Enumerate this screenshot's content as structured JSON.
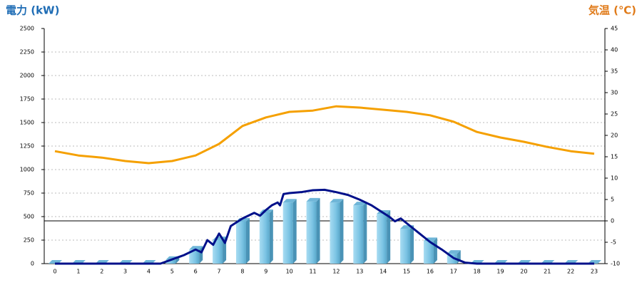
{
  "chart_data": {
    "type": "bar_line_combo",
    "y_title": "電力 (kW)",
    "y2_title": "気温 (℃)",
    "categories": [
      "0",
      "1",
      "2",
      "3",
      "4",
      "5",
      "6",
      "7",
      "8",
      "9",
      "10",
      "11",
      "12",
      "13",
      "14",
      "15",
      "16",
      "17",
      "18",
      "19",
      "20",
      "21",
      "22",
      "23"
    ],
    "ylim": [
      0,
      2500
    ],
    "yticks": [
      0,
      250,
      500,
      750,
      1000,
      1250,
      1500,
      1750,
      2000,
      2250,
      2500
    ],
    "y2lim": [
      -10,
      45
    ],
    "y2ticks": [
      -10,
      -5,
      0,
      5,
      10,
      15,
      20,
      25,
      30,
      35,
      40,
      45
    ],
    "grid": true,
    "series": [
      {
        "type": "bar",
        "color": "#8fd3f0",
        "values": [
          0,
          0,
          0,
          0,
          0,
          40,
          150,
          250,
          447,
          538,
          650,
          660,
          650,
          620,
          530,
          370,
          240,
          105,
          0,
          0,
          0,
          0,
          0,
          0
        ]
      },
      {
        "type": "line",
        "color": "#f5a000",
        "axis": "y2",
        "values": [
          16.3,
          15.3,
          14.8,
          14,
          13.5,
          14,
          15.3,
          18,
          22.2,
          24.2,
          25.5,
          25.8,
          26.8,
          26.5,
          26,
          25.5,
          24.7,
          23.2,
          20.8,
          19.5,
          18.5,
          17.3,
          16.3,
          15.7
        ]
      },
      {
        "type": "line",
        "color": "#00108a",
        "x": [
          0,
          1,
          2,
          3,
          4,
          4.5,
          5,
          5.5,
          6,
          6.25,
          6.5,
          6.75,
          7,
          7.25,
          7.5,
          8,
          8.5,
          8.75,
          9,
          9.25,
          9.5,
          9.6,
          9.75,
          10,
          10.5,
          11,
          11.5,
          12,
          12.5,
          13,
          13.5,
          14,
          14.25,
          14.5,
          14.75,
          15,
          15.5,
          16,
          16.5,
          17,
          17.5,
          18,
          19,
          20,
          21,
          22,
          23
        ],
        "values": [
          0,
          0,
          0,
          0,
          0,
          0,
          45,
          90,
          150,
          120,
          250,
          200,
          320,
          220,
          400,
          480,
          540,
          510,
          570,
          620,
          650,
          620,
          740,
          750,
          760,
          780,
          785,
          760,
          730,
          680,
          620,
          540,
          500,
          450,
          480,
          430,
          330,
          230,
          150,
          60,
          10,
          0,
          0,
          0,
          0,
          0,
          0
        ]
      }
    ]
  }
}
